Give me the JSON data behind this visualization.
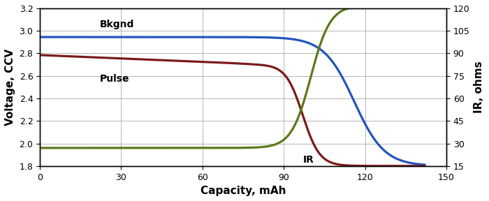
{
  "xlabel": "Capacity, mAh",
  "ylabel_left": "Voltage, CCV",
  "ylabel_right": "IR, ohms",
  "xlim": [
    0,
    150
  ],
  "ylim_left": [
    1.8,
    3.2
  ],
  "ylim_right": [
    15,
    120
  ],
  "xticks": [
    0,
    30,
    60,
    90,
    120,
    150
  ],
  "yticks_left": [
    1.8,
    2.0,
    2.2,
    2.4,
    2.6,
    2.8,
    3.0,
    3.2
  ],
  "yticks_right": [
    15,
    30,
    45,
    60,
    75,
    90,
    105,
    120
  ],
  "bkgnd_label": "Bkgnd",
  "pulse_label": "Pulse",
  "ir_label": "IR",
  "bkgnd_color": "#2255BB",
  "pulse_color": "#7B1A1A",
  "ir_color": "#5A7A1A",
  "linewidth": 2.3,
  "background_color": "#FFFFFF",
  "grid_color": "#AAAAAA",
  "label_fontsize": 10,
  "tick_fontsize": 9,
  "axis_label_fontsize": 11
}
